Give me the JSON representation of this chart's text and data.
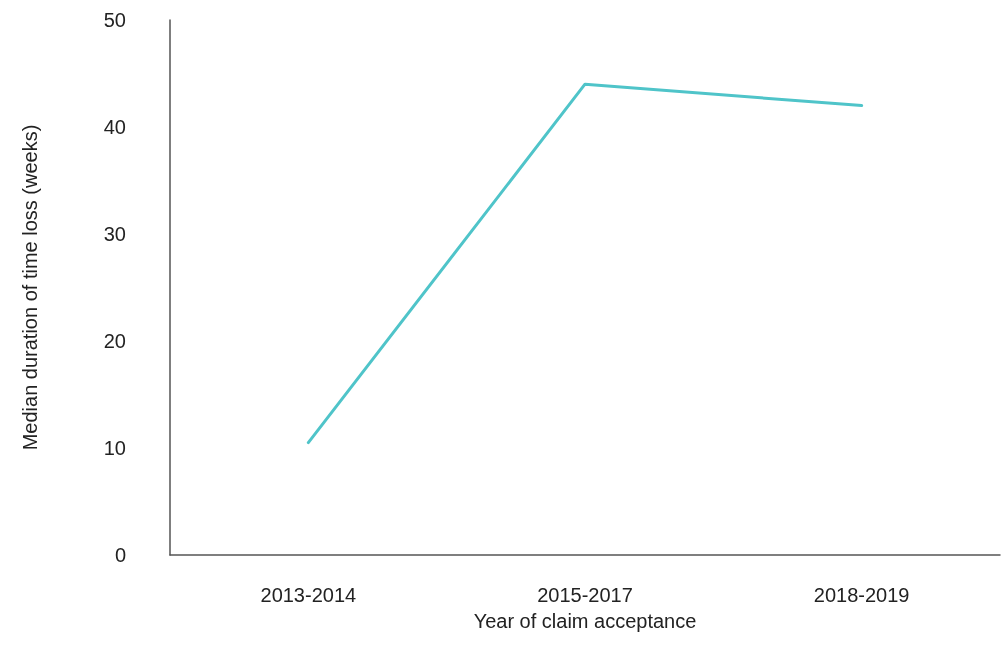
{
  "chart_data": {
    "type": "line",
    "xlabel": "Year of claim acceptance",
    "ylabel": "Median duration of time loss (weeks)",
    "categories": [
      "2013-2014",
      "2015-2017",
      "2018-2019"
    ],
    "series": [
      {
        "color": "#4fc4c9",
        "values": [
          10.5,
          44,
          42
        ]
      }
    ],
    "ylim": [
      0,
      50
    ],
    "yticks": [
      0,
      10,
      20,
      30,
      40,
      50
    ],
    "grid": false,
    "marker": "none",
    "line_style": "solid"
  }
}
